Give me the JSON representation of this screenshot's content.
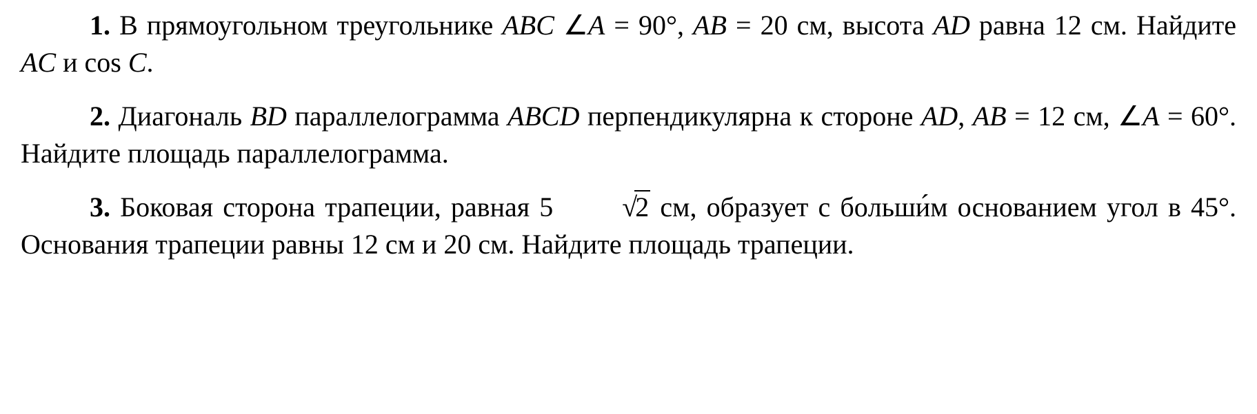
{
  "style": {
    "font_family": "Times New Roman, serif",
    "font_size_pt": 30,
    "text_color": "#000000",
    "background_color": "#ffffff",
    "line_height": 1.35,
    "text_indent_em": 2.5,
    "number_font_weight": "bold",
    "italic_elements": [
      "ABC",
      "A",
      "AB",
      "AD",
      "AC",
      "C",
      "BD",
      "ABCD"
    ],
    "justify": true
  },
  "problems": [
    {
      "number": "1.",
      "text_parts": {
        "p1": "В прямоугольном треугольнике ",
        "t_ABC": "ABC",
        "sp1": "  ",
        "angle": "∠",
        "t_A1": "A",
        "eq1": " = 90°, ",
        "t_AB": "AB",
        "eq2": " = 20 см, высота ",
        "t_AD": "AD",
        "eq3": " равна 12 см. Найдите ",
        "t_AC": "AC",
        "and": " и cos ",
        "t_C": "C",
        "end": "."
      }
    },
    {
      "number": "2.",
      "text_parts": {
        "p1": "Диагональ ",
        "t_BD": "BD",
        "p2": " параллелограмма ",
        "t_ABCD": "ABCD",
        "p3": " перпендикулярна к стороне ",
        "t_AD": "AD",
        "p4": ", ",
        "t_AB": "AB",
        "eq1": " = 12 см, ",
        "angle": "∠",
        "t_A": "A",
        "eq2": " = 60°. Найдите площадь параллелограмма."
      }
    },
    {
      "number": "3.",
      "text_parts": {
        "p1": "Боковая сторона трапеции, равная 5",
        "sqrt_radicand": "2",
        "p2": " см, образует с б",
        "acute_o": "о",
        "p3": "льшим основанием угол в 45°. Основания трапеции равны 12 см и 20 см. Найдите площадь трапеции."
      }
    }
  ]
}
